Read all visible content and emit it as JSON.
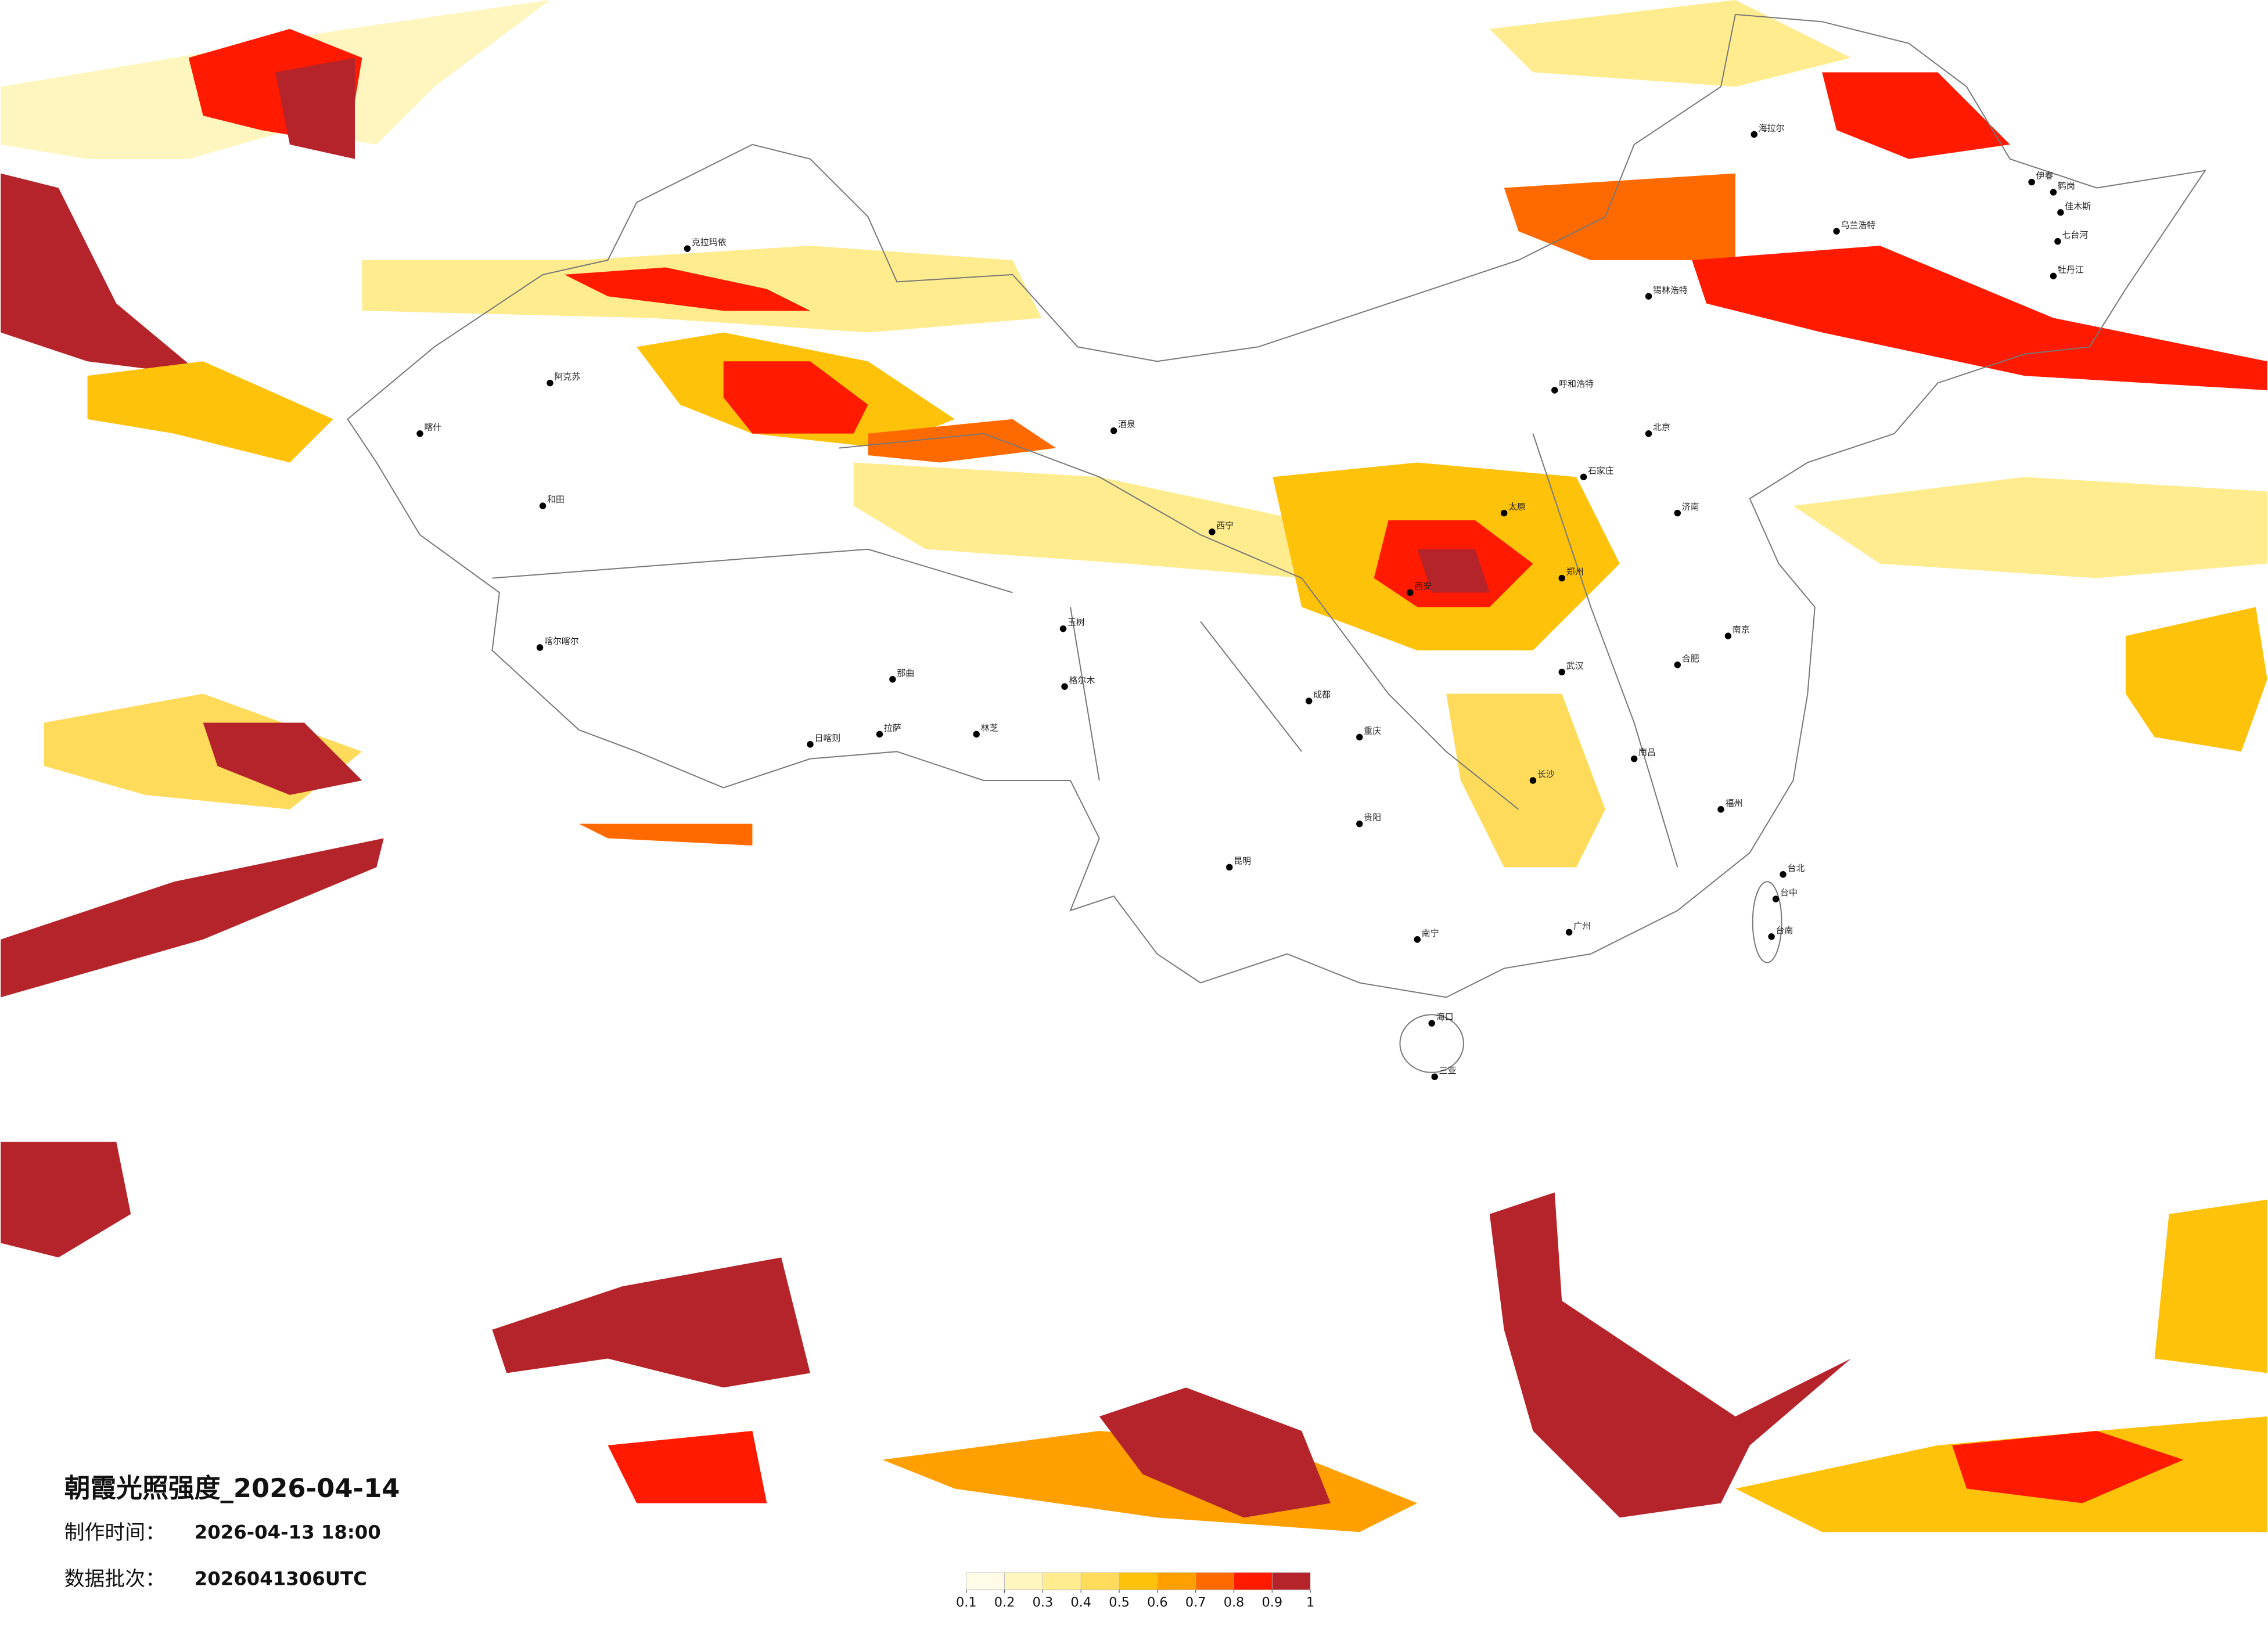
{
  "header": {
    "title": "朝霞光照强度_2026-04-14",
    "made_label": "制作时间：",
    "made_value": "2026-04-13 18:00",
    "batch_label": "数据批次：",
    "batch_value": "2026041306UTC"
  },
  "legend": {
    "ticks": [
      0.1,
      0.2,
      0.3,
      0.4,
      0.5,
      0.6,
      0.7,
      0.8,
      0.9,
      1
    ],
    "colors": [
      "#fffbe6",
      "#fff5bf",
      "#ffec8f",
      "#ffdb5c",
      "#ffc20a",
      "#ffa000",
      "#ff6a00",
      "#ff1a00",
      "#b5242a"
    ]
  },
  "cities": [
    "克拉玛依",
    "阿克苏",
    "和田",
    "喀什",
    "喀尔喀尔",
    "日喀则",
    "拉萨",
    "那曲",
    "林芝",
    "海拉尔",
    "乌兰浩特",
    "伊春",
    "鹤岗",
    "佳木斯",
    "七台河",
    "牡丹江",
    "锡林浩特",
    "呼和浩特",
    "北京",
    "石家庄",
    "太原",
    "济南",
    "郑州",
    "西安",
    "武汉",
    "长沙",
    "南昌",
    "合肥",
    "南京",
    "福州",
    "广州",
    "南宁",
    "昆明",
    "成都",
    "重庆",
    "贵阳",
    "海口",
    "三亚",
    "台北",
    "台中",
    "台南",
    "西宁",
    "玉树",
    "格尔木",
    "酒泉"
  ]
}
